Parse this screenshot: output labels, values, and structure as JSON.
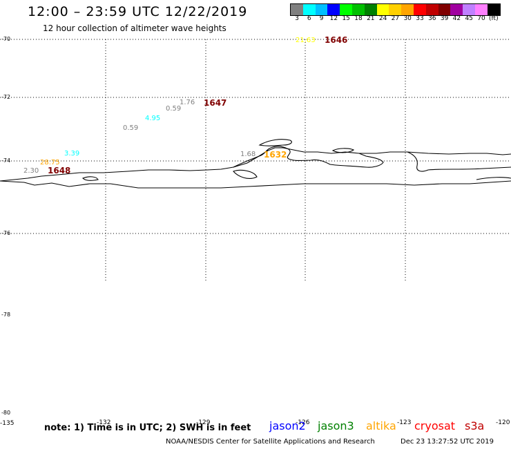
{
  "header": {
    "title": "12:00 – 23:59 UTC 12/22/2019",
    "subtitle": "12 hour collection of altimeter wave heights"
  },
  "scale": {
    "colors": [
      "#808080",
      "#00ffff",
      "#00bfff",
      "#0000ff",
      "#00ff00",
      "#00c000",
      "#008000",
      "#ffff00",
      "#ffd000",
      "#ffa500",
      "#ff0000",
      "#c00000",
      "#800000",
      "#a000a0",
      "#c080ff",
      "#ff80ff",
      "#000000"
    ],
    "values": [
      "3",
      "6",
      "9",
      "12",
      "15",
      "18",
      "21",
      "24",
      "27",
      "30",
      "33",
      "36",
      "39",
      "42",
      "45",
      "70",
      "(ft)"
    ]
  },
  "axes": {
    "lat_labels": [
      "-70",
      "-72",
      "-74",
      "-76",
      "-78",
      "-80"
    ],
    "lon_labels": [
      "-135",
      "-132",
      "-129",
      "-126",
      "-123",
      "-120"
    ]
  },
  "observations": [
    {
      "text": "21.63",
      "color": "#ffff00"
    },
    {
      "text": "1646",
      "color": "#800000"
    },
    {
      "text": "1.76",
      "color": "#808080"
    },
    {
      "text": "1647",
      "color": "#800000"
    },
    {
      "text": "0.59",
      "color": "#808080"
    },
    {
      "text": "4.95",
      "color": "#00ffff"
    },
    {
      "text": "0.59",
      "color": "#808080"
    },
    {
      "text": "3.39",
      "color": "#00ffff"
    },
    {
      "text": "28.75",
      "color": "#ffa500"
    },
    {
      "text": "2.30",
      "color": "#808080"
    },
    {
      "text": "1648",
      "color": "#800000"
    },
    {
      "text": "1.68",
      "color": "#808080"
    },
    {
      "text": "1632",
      "color": "#ffa500"
    }
  ],
  "footer": {
    "note": "note: 1) Time is in UTC; 2) SWH is in feet",
    "satellites": [
      {
        "name": "jason2",
        "color": "#0000ff"
      },
      {
        "name": "jason3",
        "color": "#008000"
      },
      {
        "name": "altika",
        "color": "#ffa500"
      },
      {
        "name": "cryosat",
        "color": "#ff0000"
      },
      {
        "name": "s3a",
        "color": "#c00000"
      }
    ],
    "credit": "NOAA/NESDIS Center for Satellite Applications and Research",
    "timestamp": "Dec 23 13:27:52 UTC 2019"
  }
}
